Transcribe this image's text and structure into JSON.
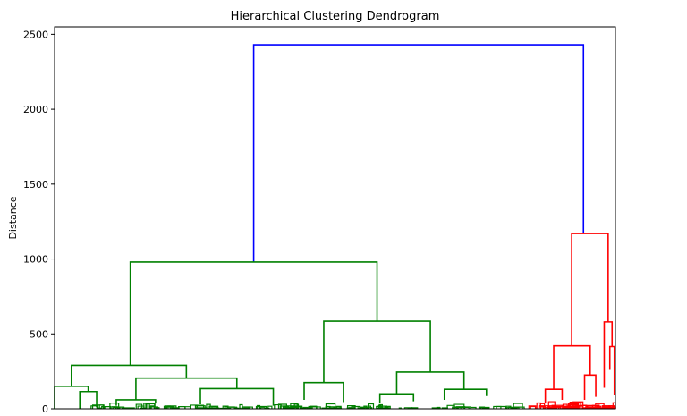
{
  "chart_data": {
    "type": "dendrogram",
    "title": "Hierarchical Clustering Dendrogram",
    "xlabel": "",
    "ylabel": "Distance",
    "ylim": [
      0,
      2550
    ],
    "yticks": [
      0,
      500,
      1000,
      1500,
      2000,
      2500
    ],
    "x_range": [
      0,
      100
    ],
    "grid": false,
    "colors": {
      "top": "#0000ff",
      "cluster_1": "#008000",
      "cluster_2": "#ff0000"
    },
    "links": [
      {
        "x1": 35.5,
        "x2": 94.3,
        "h1": 980,
        "h2": 1170,
        "y": 2430,
        "c": "top"
      },
      {
        "x1": 13.5,
        "x2": 57.5,
        "h1": 290,
        "h2": 585,
        "y": 980,
        "c": "cluster_1"
      },
      {
        "x1": 3.0,
        "x2": 23.5,
        "h1": 150,
        "h2": 205,
        "y": 290,
        "c": "cluster_1"
      },
      {
        "x1": 0.0,
        "x2": 6.0,
        "h1": 0,
        "h2": 115,
        "y": 150,
        "c": "cluster_1"
      },
      {
        "x1": 4.5,
        "x2": 7.5,
        "h1": 0,
        "h2": 10,
        "y": 115,
        "c": "cluster_1"
      },
      {
        "x1": 14.5,
        "x2": 32.5,
        "h1": 60,
        "h2": 135,
        "y": 205,
        "c": "cluster_1"
      },
      {
        "x1": 11.0,
        "x2": 18.0,
        "h1": 20,
        "h2": 35,
        "y": 60,
        "c": "cluster_1"
      },
      {
        "x1": 26.0,
        "x2": 39.0,
        "h1": 30,
        "h2": 20,
        "y": 135,
        "c": "cluster_1"
      },
      {
        "x1": 48.0,
        "x2": 67.0,
        "h1": 175,
        "h2": 245,
        "y": 585,
        "c": "cluster_1"
      },
      {
        "x1": 44.5,
        "x2": 51.5,
        "h1": 60,
        "h2": 45,
        "y": 175,
        "c": "cluster_1"
      },
      {
        "x1": 61.0,
        "x2": 73.0,
        "h1": 100,
        "h2": 130,
        "y": 245,
        "c": "cluster_1"
      },
      {
        "x1": 58.0,
        "x2": 64.0,
        "h1": 40,
        "h2": 50,
        "y": 100,
        "c": "cluster_1"
      },
      {
        "x1": 69.5,
        "x2": 77.0,
        "h1": 60,
        "h2": 85,
        "y": 130,
        "c": "cluster_1"
      },
      {
        "x1": 92.2,
        "x2": 98.7,
        "h1": 420,
        "h2": 580,
        "y": 1170,
        "c": "cluster_2"
      },
      {
        "x1": 89.0,
        "x2": 95.5,
        "h1": 130,
        "h2": 225,
        "y": 420,
        "c": "cluster_2"
      },
      {
        "x1": 87.5,
        "x2": 90.5,
        "h1": 40,
        "h2": 60,
        "y": 130,
        "c": "cluster_2"
      },
      {
        "x1": 94.5,
        "x2": 96.5,
        "h1": 60,
        "h2": 80,
        "y": 225,
        "c": "cluster_2"
      },
      {
        "x1": 98.0,
        "x2": 99.4,
        "h1": 140,
        "h2": 415,
        "y": 580,
        "c": "cluster_2"
      },
      {
        "x1": 99.0,
        "x2": 99.8,
        "h1": 260,
        "h2": 90,
        "y": 415,
        "c": "cluster_2"
      }
    ]
  }
}
